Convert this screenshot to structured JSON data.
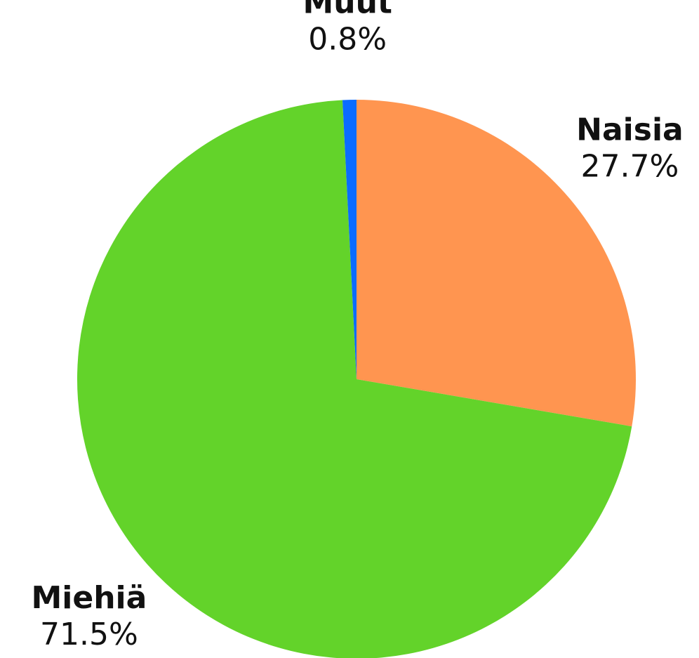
{
  "chart_data": {
    "type": "pie",
    "categories": [
      "Naisia",
      "Miehiä",
      "Muut"
    ],
    "values": [
      27.7,
      71.5,
      0.8
    ],
    "value_labels": [
      "27.7%",
      "71.5%",
      "0.8%"
    ],
    "colors": [
      "#ff9550",
      "#63d32a",
      "#0a6cff"
    ]
  }
}
